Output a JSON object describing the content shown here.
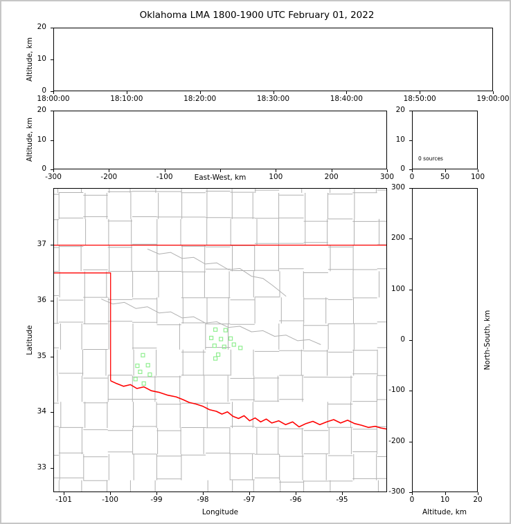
{
  "figure": {
    "title": "Oklahoma LMA 1800-1900 UTC February 01, 2022"
  },
  "colors": {
    "axis": "#000000",
    "county_lines": "#b0b0b0",
    "state_border": "#ff0000",
    "station_marker": "#90ee90"
  },
  "panels": {
    "time_height": {
      "ylabel": "Altitude, km",
      "ylim": [
        0,
        20
      ],
      "yticks": [
        0,
        10,
        20
      ],
      "xtick_labels": [
        "18:00:00",
        "18:10:00",
        "18:20:00",
        "18:30:00",
        "18:40:00",
        "18:50:00",
        "19:00:00"
      ]
    },
    "ew_height": {
      "ylabel": "Altitude, km",
      "ylim": [
        0,
        20
      ],
      "yticks": [
        0,
        10,
        20
      ],
      "xlabel": "East-West, km",
      "xlim": [
        -300,
        300
      ],
      "xticks": [
        -300,
        -200,
        -100,
        0,
        100,
        200,
        300
      ],
      "xtick_hide": [
        0
      ]
    },
    "alt_histogram": {
      "annotation": "0 sources",
      "xlim": [
        0,
        100
      ],
      "xticks": [
        0,
        50,
        100
      ],
      "ylim": [
        0,
        20
      ],
      "yticks": [
        0,
        10,
        20
      ]
    },
    "map": {
      "xlabel": "Longitude",
      "ylabel": "Latitude",
      "xlim": [
        -101.224,
        -94.03
      ],
      "ylim": [
        32.567,
        38.015
      ],
      "xticks": [
        -101,
        -100,
        -99,
        -98,
        -97,
        -96,
        -95
      ],
      "yticks": [
        33,
        34,
        35,
        36,
        37
      ]
    },
    "ns_height": {
      "ylabel": "North-South, km",
      "xlabel": "Altitude, km",
      "ylim": [
        -300,
        300
      ],
      "yticks": [
        300,
        200,
        100,
        0,
        -100,
        -200,
        -300
      ],
      "xlim": [
        0,
        20
      ],
      "xticks": [
        0,
        10,
        20
      ]
    }
  },
  "chart_data": [
    {
      "type": "scatter",
      "panel": "time_height",
      "title": "Oklahoma LMA 1800-1900 UTC February 01, 2022",
      "ylabel": "Altitude, km",
      "xtick_labels": [
        "18:00:00",
        "18:10:00",
        "18:20:00",
        "18:30:00",
        "18:40:00",
        "18:50:00",
        "19:00:00"
      ],
      "ylim": [
        0,
        20
      ],
      "x": [],
      "y": []
    },
    {
      "type": "scatter",
      "panel": "ew_height",
      "xlabel": "East-West, km",
      "ylabel": "Altitude, km",
      "xlim": [
        -300,
        300
      ],
      "ylim": [
        0,
        20
      ],
      "x": [],
      "y": []
    },
    {
      "type": "histogram",
      "panel": "alt_histogram",
      "annotation": "0 sources",
      "xlim": [
        0,
        100
      ],
      "ylim": [
        0,
        20
      ],
      "values": []
    },
    {
      "type": "scatter",
      "panel": "map",
      "xlabel": "Longitude",
      "ylabel": "Latitude",
      "xlim": [
        -101.224,
        -94.03
      ],
      "ylim": [
        32.567,
        38.015
      ],
      "series": [
        {
          "name": "lma_stations",
          "marker": "open-square",
          "color": "#90ee90",
          "points": [
            [
              -99.3,
              35.02
            ],
            [
              -99.42,
              34.83
            ],
            [
              -99.19,
              34.84
            ],
            [
              -99.36,
              34.72
            ],
            [
              -99.15,
              34.67
            ],
            [
              -99.46,
              34.59
            ],
            [
              -99.28,
              34.51
            ],
            [
              -97.73,
              35.48
            ],
            [
              -97.51,
              35.47
            ],
            [
              -97.82,
              35.33
            ],
            [
              -97.61,
              35.31
            ],
            [
              -97.4,
              35.32
            ],
            [
              -97.75,
              35.19
            ],
            [
              -97.54,
              35.17
            ],
            [
              -97.33,
              35.21
            ],
            [
              -97.19,
              35.15
            ],
            [
              -97.67,
              35.03
            ],
            [
              -97.73,
              34.96
            ]
          ]
        }
      ]
    },
    {
      "type": "scatter",
      "panel": "ns_height",
      "xlabel": "Altitude, km",
      "ylabel": "North-South, km",
      "xlim": [
        0,
        20
      ],
      "ylim": [
        -300,
        300
      ],
      "x": [],
      "y": []
    }
  ],
  "map_features": {
    "state_border": [
      [
        [
          -101.224,
          37.0
        ],
        [
          -94.03,
          37.0
        ]
      ],
      [
        [
          -101.224,
          36.5
        ],
        [
          -100.0,
          36.5
        ],
        [
          -100.0,
          34.56
        ]
      ]
    ],
    "red_river": [
      [
        -100.0,
        34.56
      ],
      [
        -99.87,
        34.51
      ],
      [
        -99.72,
        34.46
      ],
      [
        -99.57,
        34.49
      ],
      [
        -99.43,
        34.42
      ],
      [
        -99.28,
        34.45
      ],
      [
        -99.12,
        34.38
      ],
      [
        -98.94,
        34.35
      ],
      [
        -98.76,
        34.3
      ],
      [
        -98.58,
        34.27
      ],
      [
        -98.43,
        34.22
      ],
      [
        -98.3,
        34.17
      ],
      [
        -98.15,
        34.14
      ],
      [
        -98.0,
        34.1
      ],
      [
        -97.86,
        34.04
      ],
      [
        -97.71,
        34.01
      ],
      [
        -97.59,
        33.96
      ],
      [
        -97.47,
        34.0
      ],
      [
        -97.35,
        33.92
      ],
      [
        -97.23,
        33.88
      ],
      [
        -97.11,
        33.93
      ],
      [
        -96.99,
        33.84
      ],
      [
        -96.87,
        33.89
      ],
      [
        -96.75,
        33.82
      ],
      [
        -96.63,
        33.87
      ],
      [
        -96.51,
        33.8
      ],
      [
        -96.36,
        33.84
      ],
      [
        -96.21,
        33.77
      ],
      [
        -96.06,
        33.82
      ],
      [
        -95.92,
        33.73
      ],
      [
        -95.77,
        33.79
      ],
      [
        -95.62,
        33.83
      ],
      [
        -95.47,
        33.77
      ],
      [
        -95.32,
        33.82
      ],
      [
        -95.17,
        33.86
      ],
      [
        -95.02,
        33.8
      ],
      [
        -94.87,
        33.85
      ],
      [
        -94.72,
        33.79
      ],
      [
        -94.57,
        33.76
      ],
      [
        -94.42,
        33.72
      ],
      [
        -94.27,
        33.74
      ],
      [
        -94.15,
        33.71
      ],
      [
        -94.02,
        33.69
      ]
    ],
    "rivers": [
      [
        [
          -100.2,
          36.03
        ],
        [
          -99.95,
          35.94
        ],
        [
          -99.7,
          35.97
        ],
        [
          -99.45,
          35.86
        ],
        [
          -99.2,
          35.89
        ],
        [
          -98.95,
          35.78
        ],
        [
          -98.7,
          35.8
        ],
        [
          -98.45,
          35.69
        ],
        [
          -98.2,
          35.71
        ],
        [
          -97.95,
          35.6
        ],
        [
          -97.7,
          35.62
        ],
        [
          -97.45,
          35.52
        ],
        [
          -97.2,
          35.54
        ],
        [
          -96.95,
          35.44
        ],
        [
          -96.7,
          35.46
        ],
        [
          -96.45,
          35.36
        ],
        [
          -96.2,
          35.38
        ],
        [
          -95.95,
          35.28
        ],
        [
          -95.7,
          35.3
        ],
        [
          -95.45,
          35.21
        ]
      ],
      [
        [
          -99.2,
          36.93
        ],
        [
          -98.95,
          36.84
        ],
        [
          -98.7,
          36.87
        ],
        [
          -98.45,
          36.76
        ],
        [
          -98.2,
          36.78
        ],
        [
          -97.95,
          36.66
        ],
        [
          -97.7,
          36.68
        ],
        [
          -97.45,
          36.56
        ],
        [
          -97.2,
          36.58
        ],
        [
          -96.95,
          36.44
        ],
        [
          -96.7,
          36.4
        ],
        [
          -96.5,
          36.28
        ],
        [
          -96.35,
          36.18
        ],
        [
          -96.2,
          36.08
        ]
      ]
    ]
  }
}
